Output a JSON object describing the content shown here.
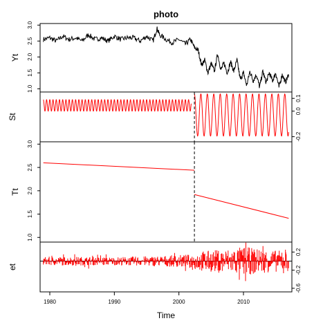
{
  "chart_data": {
    "type": "line",
    "title": "photo",
    "xlabel": "Time",
    "x_range": [
      1978.5,
      2017.5
    ],
    "x_ticks": [
      1980,
      1990,
      2000,
      2010
    ],
    "break_time": 2002.4,
    "colors": {
      "observed": "#000000",
      "components": "#ff0000",
      "frame": "#000000"
    },
    "panels": [
      {
        "name": "Yt",
        "ylabel": "Yt",
        "yaxis_side": "left",
        "ylim": [
          0.9,
          3.05
        ],
        "y_ticks": [
          1.0,
          1.5,
          2.0,
          2.5,
          3.0
        ],
        "series": {
          "kind": "line",
          "color": "#000000",
          "x": [
            1979.0,
            1980.0,
            1981.0,
            1982.0,
            1983.0,
            1984.0,
            1985.0,
            1986.0,
            1987.0,
            1988.0,
            1989.0,
            1990.0,
            1991.0,
            1992.0,
            1993.0,
            1994.0,
            1995.0,
            1996.0,
            1996.6,
            1997.0,
            1998.0,
            1999.0,
            2000.0,
            2001.0,
            2001.8,
            2002.4,
            2003.0,
            2003.5,
            2004.0,
            2004.5,
            2005.0,
            2005.5,
            2006.0,
            2006.5,
            2007.0,
            2007.5,
            2008.0,
            2008.5,
            2009.0,
            2009.5,
            2010.0,
            2010.5,
            2011.0,
            2011.5,
            2012.0,
            2012.5,
            2013.0,
            2013.5,
            2014.0,
            2014.5,
            2015.0,
            2015.5,
            2016.0,
            2016.5,
            2017.0
          ],
          "y": [
            2.55,
            2.6,
            2.5,
            2.65,
            2.55,
            2.6,
            2.5,
            2.7,
            2.55,
            2.6,
            2.5,
            2.65,
            2.55,
            2.6,
            2.6,
            2.5,
            2.65,
            2.5,
            2.9,
            2.7,
            2.55,
            2.45,
            2.55,
            2.4,
            2.55,
            2.3,
            2.2,
            1.75,
            1.9,
            1.5,
            1.8,
            1.55,
            2.1,
            1.6,
            1.8,
            1.5,
            1.85,
            1.55,
            1.9,
            1.3,
            1.5,
            1.1,
            1.55,
            1.25,
            1.45,
            1.05,
            1.55,
            1.2,
            1.5,
            1.25,
            1.5,
            1.05,
            1.45,
            1.2,
            1.45
          ]
        }
      },
      {
        "name": "St",
        "ylabel": "St",
        "yaxis_side": "right",
        "ylim": [
          -0.24,
          0.15
        ],
        "y_ticks": [
          -0.2,
          0.0,
          0.1
        ],
        "series": {
          "kind": "seasonal",
          "color": "#ff0000",
          "segments": [
            {
              "x_start": 1979.0,
              "x_end": 2001.9,
              "period": 0.5,
              "mean": 0.045,
              "amplitude": 0.045
            },
            {
              "x_start": 2002.4,
              "x_end": 2017.0,
              "period": 1.0,
              "mean": -0.03,
              "amplitude": 0.165
            }
          ]
        }
      },
      {
        "name": "Tt",
        "ylabel": "Tt",
        "yaxis_side": "left",
        "ylim": [
          0.9,
          3.05
        ],
        "y_ticks": [
          1.0,
          1.5,
          2.0,
          2.5,
          3.0
        ],
        "series": {
          "kind": "trend",
          "color": "#ff0000",
          "segments": [
            {
              "x": [
                1979.0,
                2002.4
              ],
              "y": [
                2.6,
                2.44
              ]
            },
            {
              "x": [
                2002.4,
                2017.0
              ],
              "y": [
                1.92,
                1.41
              ]
            }
          ]
        }
      },
      {
        "name": "et",
        "ylabel": "et",
        "yaxis_side": "right",
        "ylim": [
          -0.68,
          0.42
        ],
        "y_ticks": [
          -0.6,
          -0.2,
          0.2
        ],
        "series": {
          "kind": "residual",
          "color": "#ff0000",
          "x_start": 1979.0,
          "x_end": 2017.0,
          "envelope": {
            "x": [
              1979.0,
              1990.0,
              1998.0,
              2002.0,
              2003.0,
              2005.0,
              2008.0,
              2010.0,
              2013.0,
              2017.0
            ],
            "amplitude": [
              0.1,
              0.09,
              0.12,
              0.15,
              0.22,
              0.24,
              0.28,
              0.32,
              0.26,
              0.22
            ]
          }
        }
      }
    ]
  }
}
